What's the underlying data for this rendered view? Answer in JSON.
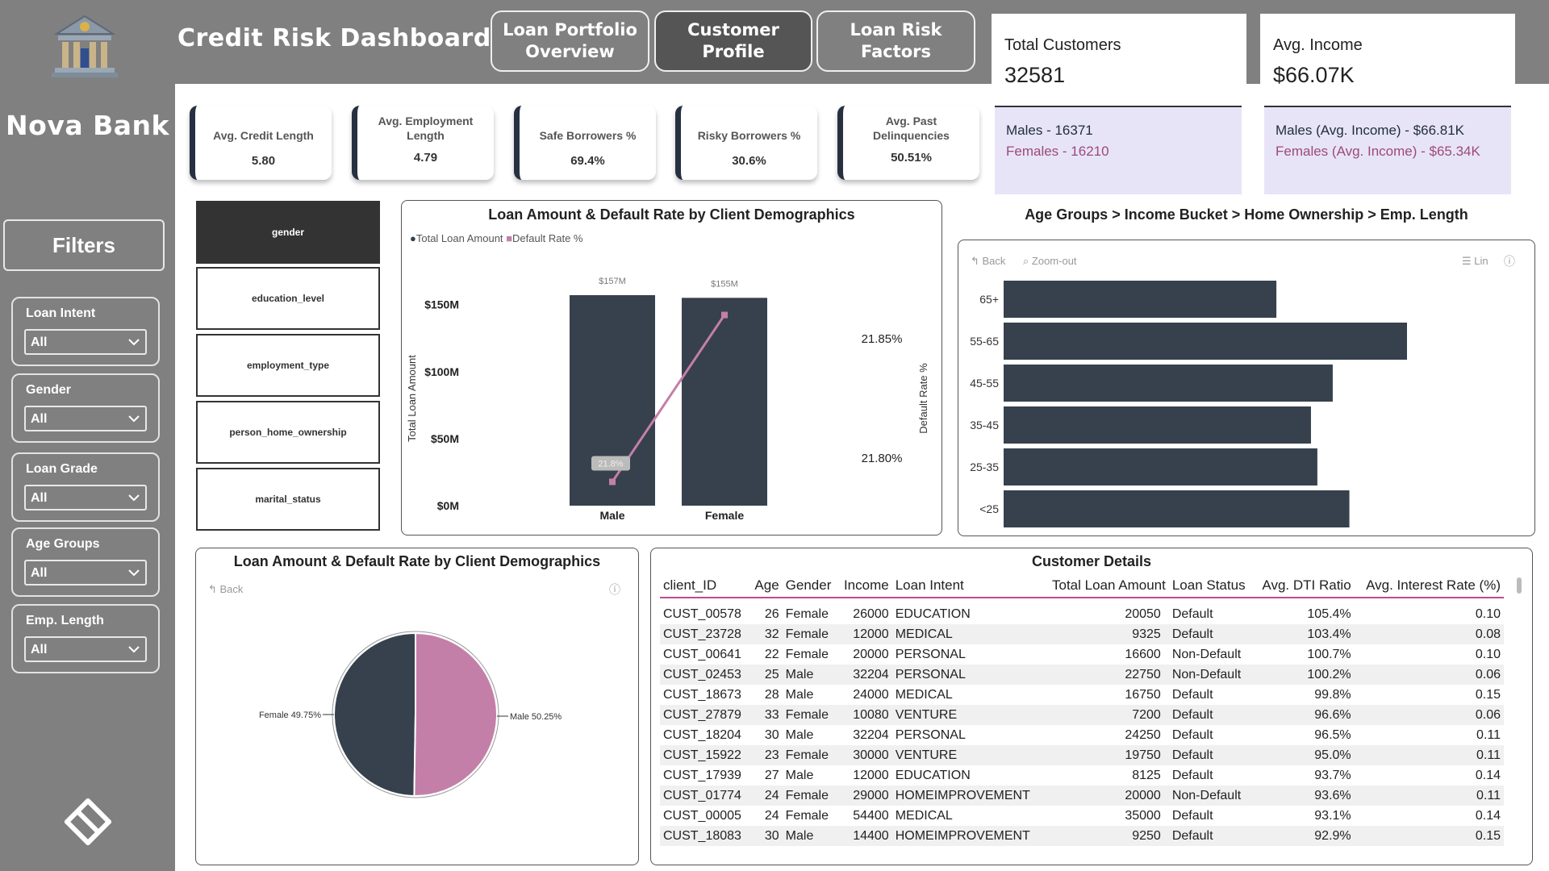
{
  "app": {
    "bank_name": "Nova Bank",
    "title": "Credit Risk Dashboard",
    "filters_label": "Filters"
  },
  "nav": [
    {
      "label": "Loan Portfolio Overview",
      "active": false
    },
    {
      "label": "Customer Profile",
      "active": true
    },
    {
      "label": "Loan Risk Factors",
      "active": false
    }
  ],
  "slicers": [
    {
      "label": "Loan Intent",
      "value": "All"
    },
    {
      "label": "Gender",
      "value": "All"
    },
    {
      "label": "Loan Grade",
      "value": "All"
    },
    {
      "label": "Age Groups",
      "value": "All"
    },
    {
      "label": "Emp. Length",
      "value": "All"
    }
  ],
  "kpi_big": [
    {
      "title": "Total Customers",
      "value": "32581",
      "male_line": "Males - 16371",
      "female_line": "Females - 16210"
    },
    {
      "title": "Avg. Income",
      "value": "$66.07K",
      "male_line": "Males (Avg. Income) - $66.81K",
      "female_line": "Females (Avg. Income) - $65.34K"
    }
  ],
  "cards": [
    {
      "title": "Avg. Credit Length",
      "value": "5.80"
    },
    {
      "title": "Avg. Employment Length",
      "value": "4.79"
    },
    {
      "title": "Safe Borrowers %",
      "value": "69.4%"
    },
    {
      "title": "Risky Borrowers %",
      "value": "30.6%"
    },
    {
      "title": "Avg. Past Delinquencies",
      "value": "50.51%"
    }
  ],
  "field_buttons": [
    {
      "label": "gender",
      "active": true
    },
    {
      "label": "education_level",
      "active": false
    },
    {
      "label": "employment_type",
      "active": false
    },
    {
      "label": "person_home_ownership",
      "active": false
    },
    {
      "label": "marital_status",
      "active": false
    }
  ],
  "colors": {
    "dark": "#36414d",
    "pink": "#c47fa8",
    "sidebar": "#808080"
  },
  "combo_chart": {
    "title": "Loan Amount & Default Rate by Client Demographics",
    "legend_amount": "Total Loan Amount",
    "legend_rate": "Default Rate %",
    "ylabel_left": "Total Loan Amount",
    "ylabel_right": "Default Rate %",
    "left_ticks": [
      "$150M",
      "$100M",
      "$50M",
      "$0M"
    ],
    "right_ticks": [
      "21.85%",
      "21.80%"
    ],
    "bar_labels": [
      "$157M",
      "$155M"
    ],
    "point_label": "21.8%"
  },
  "bar_chart": {
    "title": "Age Groups > Income Bucket > Home Ownership > Emp. Length",
    "back": "Back",
    "zoom_out": "Zoom-out",
    "lin": "Lin"
  },
  "pie_chart": {
    "title": "Loan Amount & Default Rate by Client Demographics",
    "back": "Back",
    "labels": [
      "Female 49.75%",
      "Male 50.25%"
    ]
  },
  "table": {
    "title": "Customer Details",
    "columns": [
      "client_ID",
      "Age",
      "Gender",
      "Income",
      "Loan Intent",
      "Total Loan Amount",
      "Loan Status",
      "Avg. DTI Ratio",
      "Avg. Interest Rate (%)"
    ],
    "rows": [
      [
        "CUST_00578",
        "26",
        "Female",
        "26000",
        "EDUCATION",
        "20050",
        "Default",
        "105.4%",
        "0.10"
      ],
      [
        "CUST_23728",
        "32",
        "Female",
        "12000",
        "MEDICAL",
        "9325",
        "Default",
        "103.4%",
        "0.08"
      ],
      [
        "CUST_00641",
        "22",
        "Female",
        "20000",
        "PERSONAL",
        "16600",
        "Non-Default",
        "100.7%",
        "0.10"
      ],
      [
        "CUST_02453",
        "25",
        "Male",
        "32204",
        "PERSONAL",
        "22750",
        "Non-Default",
        "100.2%",
        "0.06"
      ],
      [
        "CUST_18673",
        "28",
        "Male",
        "24000",
        "MEDICAL",
        "16750",
        "Default",
        "99.8%",
        "0.15"
      ],
      [
        "CUST_27879",
        "33",
        "Female",
        "10080",
        "VENTURE",
        "7200",
        "Default",
        "96.6%",
        "0.06"
      ],
      [
        "CUST_18204",
        "30",
        "Male",
        "32204",
        "PERSONAL",
        "24250",
        "Default",
        "96.5%",
        "0.11"
      ],
      [
        "CUST_15922",
        "23",
        "Female",
        "30000",
        "VENTURE",
        "19750",
        "Default",
        "95.0%",
        "0.11"
      ],
      [
        "CUST_17939",
        "27",
        "Male",
        "12000",
        "EDUCATION",
        "8125",
        "Default",
        "93.7%",
        "0.14"
      ],
      [
        "CUST_01774",
        "24",
        "Female",
        "29000",
        "HOMEIMPROVEMENT",
        "20000",
        "Non-Default",
        "93.6%",
        "0.11"
      ],
      [
        "CUST_00005",
        "24",
        "Female",
        "54400",
        "MEDICAL",
        "35000",
        "Default",
        "93.1%",
        "0.14"
      ],
      [
        "CUST_18083",
        "30",
        "Male",
        "14400",
        "HOMEIMPROVEMENT",
        "9250",
        "Default",
        "92.9%",
        "0.15"
      ]
    ]
  },
  "chart_data": [
    {
      "type": "bar",
      "title": "Loan Amount & Default Rate by Client Demographics",
      "categories": [
        "Male",
        "Female"
      ],
      "series": [
        {
          "name": "Total Loan Amount",
          "values": [
            157,
            155
          ],
          "unit": "$M"
        },
        {
          "name": "Default Rate %",
          "values": [
            21.79,
            21.86
          ],
          "type": "line"
        }
      ],
      "ylabel": "Total Loan Amount",
      "y2label": "Default Rate %",
      "ylim": [
        0,
        160
      ],
      "y2lim": [
        21.78,
        21.87
      ]
    },
    {
      "type": "bar",
      "orientation": "horizontal",
      "title": "Age Groups > Income Bucket > Home Ownership > Emp. Length",
      "categories": [
        "65+",
        "55-65",
        "45-55",
        "35-45",
        "25-35",
        "<25"
      ],
      "values": [
        21.3,
        31.5,
        25.7,
        24.0,
        24.5,
        27.0
      ]
    },
    {
      "type": "pie",
      "title": "Loan Amount & Default Rate by Client Demographics",
      "categories": [
        "Female",
        "Male"
      ],
      "values": [
        49.75,
        50.25
      ]
    }
  ]
}
